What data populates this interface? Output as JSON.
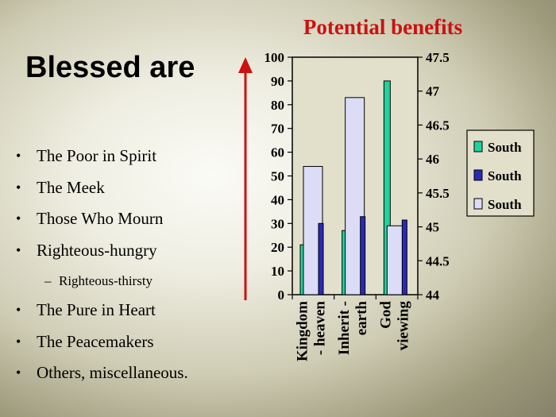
{
  "slide": {
    "title": "Blessed are",
    "bullets": [
      {
        "text": "The Poor in Spirit",
        "level": 1
      },
      {
        "text": "The Meek",
        "level": 1
      },
      {
        "text": "Those Who Mourn",
        "level": 1
      },
      {
        "text": "Righteous-hungry",
        "level": 1
      },
      {
        "text": "Righteous-thirsty",
        "level": 2
      },
      {
        "text": "The Pure in Heart",
        "level": 1
      },
      {
        "text": "The Peacemakers",
        "level": 1
      },
      {
        "text": "Others, miscellaneous.",
        "level": 1
      }
    ],
    "bullet_glyph": "•",
    "sub_bullet_glyph": "–"
  },
  "chart_data": {
    "type": "bar",
    "title": "Potential benefits",
    "categories": [
      [
        "Kingdom",
        "- heaven"
      ],
      [
        "Inherit -",
        "earth"
      ],
      [
        "God",
        "viewing"
      ]
    ],
    "series": [
      {
        "name": "South",
        "axis": "left",
        "color": "#1fd39e",
        "values": [
          21,
          27,
          90
        ]
      },
      {
        "name": "South",
        "axis": "right",
        "color": "#2a2ab8",
        "values": [
          45.05,
          45.15,
          45.1
        ]
      },
      {
        "name": "South",
        "axis": "left",
        "color": "#dcdcf6",
        "values": [
          54,
          83,
          29
        ]
      }
    ],
    "y_left": {
      "min": 0,
      "max": 100,
      "ticks": [
        0,
        10,
        20,
        30,
        40,
        50,
        60,
        70,
        80,
        90,
        100
      ]
    },
    "y_right": {
      "min": 44,
      "max": 47.5,
      "ticks": [
        "44",
        "44.5",
        "45",
        "45.5",
        "46",
        "46.5",
        "47",
        "47.5"
      ]
    },
    "grid": false,
    "legend": "right",
    "arrow_color": "#cc1111"
  }
}
